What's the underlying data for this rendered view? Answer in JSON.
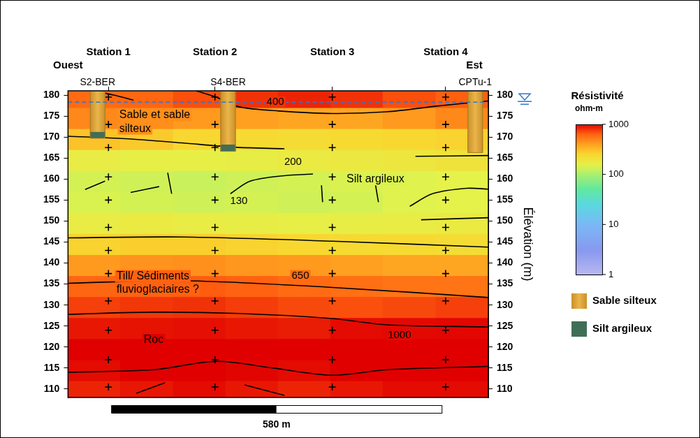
{
  "chart_data": {
    "type": "heatmap",
    "side_labels": {
      "left": "Ouest",
      "right": "Est"
    },
    "xlim": [
      0,
      738
    ],
    "xticks": [
      {
        "value": 71,
        "label": "Station 1"
      },
      {
        "value": 258,
        "label": "Station 2"
      },
      {
        "value": 464,
        "label": "Station 3"
      },
      {
        "value": 663,
        "label": "Station 4"
      }
    ],
    "ylim": [
      108,
      181
    ],
    "yticks": [
      110,
      115,
      120,
      125,
      130,
      135,
      140,
      145,
      150,
      155,
      160,
      165,
      170,
      175,
      180
    ],
    "y2lim": [
      108,
      181
    ],
    "y2ticks": [
      110,
      115,
      120,
      125,
      130,
      135,
      140,
      145,
      150,
      155,
      160,
      165,
      170,
      175,
      180
    ],
    "y2_label": "Élévation (m)",
    "grid": false,
    "cells": {
      "x_edges": [
        0,
        92,
        185,
        277,
        369,
        461,
        553,
        646,
        738
      ],
      "y_edges": [
        108,
        112,
        117,
        122,
        127,
        132,
        137,
        142,
        147,
        152,
        157,
        162,
        167,
        172,
        177,
        181
      ],
      "values": [
        [
          850,
          900,
          950,
          900,
          850,
          900,
          950,
          950
        ],
        [
          950,
          1000,
          1000,
          980,
          950,
          1000,
          1000,
          1000
        ],
        [
          1000,
          1000,
          1000,
          1000,
          1000,
          1000,
          1000,
          1000
        ],
        [
          900,
          920,
          930,
          900,
          880,
          950,
          960,
          970
        ],
        [
          750,
          780,
          800,
          760,
          720,
          700,
          720,
          750
        ],
        [
          620,
          640,
          660,
          640,
          600,
          580,
          560,
          560
        ],
        [
          420,
          440,
          450,
          430,
          420,
          400,
          380,
          380
        ],
        [
          260,
          270,
          270,
          260,
          250,
          240,
          240,
          230
        ],
        [
          170,
          175,
          170,
          165,
          160,
          165,
          170,
          175
        ],
        [
          140,
          135,
          130,
          135,
          130,
          135,
          145,
          150
        ],
        [
          135,
          130,
          125,
          130,
          135,
          140,
          145,
          150
        ],
        [
          170,
          160,
          160,
          165,
          175,
          180,
          190,
          200
        ],
        [
          300,
          280,
          250,
          240,
          230,
          240,
          250,
          260
        ],
        [
          480,
          460,
          420,
          400,
          380,
          380,
          420,
          480
        ],
        [
          600,
          620,
          700,
          800,
          850,
          800,
          700,
          650
        ]
      ]
    },
    "colorbar": {
      "title": "Résistivité",
      "unit": "ohm-m",
      "range": [
        1,
        1000
      ],
      "ticks": [
        1,
        10,
        100,
        1000
      ]
    },
    "contours": [
      {
        "points": [
          [
            45,
            181
          ],
          [
            80,
            180
          ],
          [
            115,
            178.8
          ]
        ]
      },
      {
        "points": [
          [
            225,
            181
          ],
          [
            260,
            179.5
          ],
          [
            300,
            177.2
          ],
          [
            370,
            176.2
          ],
          [
            464,
            175.6
          ],
          [
            560,
            176
          ],
          [
            650,
            177.4
          ],
          [
            738,
            178.6
          ]
        ]
      },
      {
        "points": [
          [
            0,
            170.2
          ],
          [
            100,
            169.6
          ],
          [
            200,
            168.6
          ],
          [
            290,
            167.6
          ],
          [
            380,
            167.2
          ]
        ]
      },
      {
        "points": [
          [
            610,
            165.4
          ],
          [
            738,
            165.6
          ]
        ]
      },
      {
        "points": [
          [
            285,
            156.5
          ],
          [
            320,
            159.5
          ],
          [
            380,
            160.8
          ],
          [
            430,
            161.2
          ]
        ]
      },
      {
        "points": [
          [
            30,
            157.5
          ],
          [
            65,
            159.5
          ]
        ]
      },
      {
        "points": [
          [
            110,
            156.8
          ],
          [
            160,
            158.2
          ]
        ]
      },
      {
        "points": [
          [
            175,
            161.5
          ],
          [
            182,
            156.5
          ]
        ]
      },
      {
        "points": [
          [
            445,
            158.5
          ],
          [
            447,
            154.5
          ]
        ]
      },
      {
        "points": [
          [
            540,
            158.5
          ],
          [
            545,
            154.5
          ]
        ]
      },
      {
        "points": [
          [
            600,
            153.5
          ],
          [
            640,
            156.5
          ],
          [
            700,
            157.8
          ],
          [
            738,
            157.6
          ]
        ]
      },
      {
        "points": [
          [
            620,
            150.3
          ],
          [
            738,
            150.8
          ]
        ]
      },
      {
        "points": [
          [
            0,
            146
          ],
          [
            200,
            146.2
          ],
          [
            464,
            145.2
          ],
          [
            738,
            143.8
          ]
        ]
      },
      {
        "points": [
          [
            0,
            135.2
          ],
          [
            200,
            135.8
          ],
          [
            464,
            134.2
          ],
          [
            738,
            131.8
          ]
        ]
      },
      {
        "points": [
          [
            0,
            127.8
          ],
          [
            150,
            128.3
          ],
          [
            300,
            128
          ],
          [
            464,
            126.8
          ],
          [
            560,
            125.3
          ],
          [
            738,
            124.8
          ]
        ]
      },
      {
        "points": [
          [
            0,
            114
          ],
          [
            150,
            114.6
          ],
          [
            260,
            116.6
          ],
          [
            360,
            115
          ],
          [
            464,
            113.3
          ],
          [
            560,
            114.6
          ],
          [
            738,
            115.4
          ]
        ]
      },
      {
        "points": [
          [
            120,
            109
          ],
          [
            170,
            111.5
          ]
        ]
      },
      {
        "points": [
          [
            310,
            111
          ],
          [
            380,
            108.5
          ]
        ]
      }
    ],
    "contour_labels": [
      {
        "value": 400,
        "x": 364,
        "y": 178.3
      },
      {
        "value": 200,
        "x": 395,
        "y": 164
      },
      {
        "value": 130,
        "x": 300,
        "y": 154.8
      },
      {
        "value": 650,
        "x": 408,
        "y": 137
      },
      {
        "value": 1000,
        "x": 582,
        "y": 122.9
      }
    ],
    "annotations": [
      {
        "text": [
          "Sable et sable",
          "silteux"
        ],
        "x": 90,
        "y": 173.6
      },
      {
        "text": [
          "Silt argileux"
        ],
        "x": 489,
        "y": 160
      },
      {
        "text": [
          "Till/ Sédiments",
          "fluvioglaciaires ?"
        ],
        "x": 85,
        "y": 135.3
      },
      {
        "text": [
          "Roc"
        ],
        "x": 133,
        "y": 121.7
      }
    ],
    "boreholes": [
      {
        "name": "S2-BER",
        "x": 52,
        "layers": [
          {
            "material": "Sable silteux",
            "top": 181,
            "bottom": 171.2
          },
          {
            "material": "Silt argileux",
            "top": 171.2,
            "bottom": 169.7
          }
        ]
      },
      {
        "name": "S4-BER",
        "x": 281,
        "layers": [
          {
            "material": "Sable silteux",
            "top": 181,
            "bottom": 168.2
          },
          {
            "material": "Silt argileux",
            "top": 168.2,
            "bottom": 166.6
          }
        ]
      },
      {
        "name": "CPTu-1",
        "x": 715,
        "layers": [
          {
            "material": "Sable silteux",
            "top": 181,
            "bottom": 166.3
          }
        ]
      }
    ],
    "legend_items": [
      {
        "name": "Sable silteux",
        "color": "#eab54a"
      },
      {
        "name": "Silt argileux",
        "color": "#3f6e57"
      }
    ],
    "water_table": {
      "elevation": 178.3
    },
    "measurement_points": {
      "marker": "cross",
      "elevations": [
        179.5,
        173,
        167.5,
        160.5,
        155,
        148.5,
        143,
        137.5,
        131,
        124,
        117,
        110.5
      ]
    },
    "scale_bar": {
      "length": 580,
      "label": "580 m"
    }
  }
}
